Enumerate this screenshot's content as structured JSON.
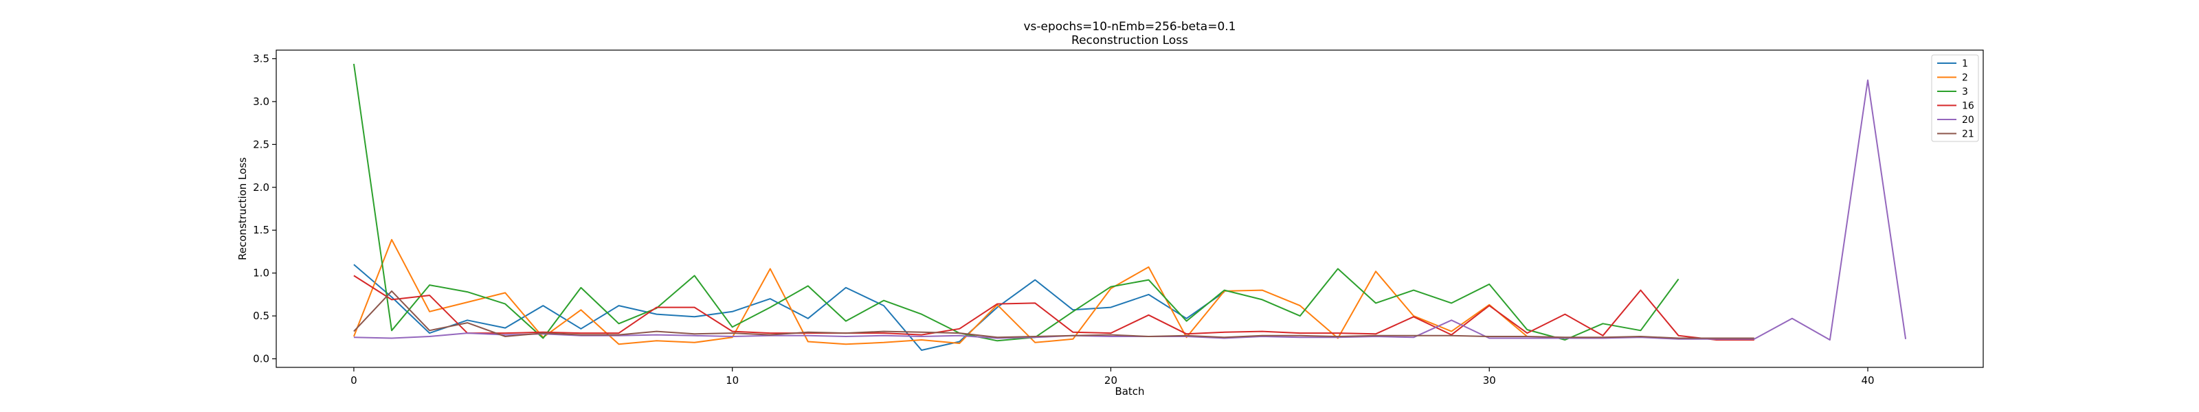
{
  "chart_data": {
    "type": "line",
    "title": "vs-epochs=10-nEmb=256-beta=0.1",
    "subtitle": "Reconstruction Loss",
    "xlabel": "Batch",
    "ylabel": "Reconstruction Loss",
    "xlim": [
      -2.05,
      43.05
    ],
    "ylim": [
      -0.1,
      3.6
    ],
    "x_ticks": [
      0,
      10,
      20,
      30,
      40
    ],
    "y_ticks": [
      0.0,
      0.5,
      1.0,
      1.5,
      2.0,
      2.5,
      3.0,
      3.5
    ],
    "grid": false,
    "legend_position": "upper right",
    "series": [
      {
        "name": "1",
        "color": "#1f77b4",
        "values": [
          1.1,
          0.72,
          0.3,
          0.45,
          0.36,
          0.62,
          0.35,
          0.62,
          0.52,
          0.49,
          0.55,
          0.7,
          0.47,
          0.83,
          0.62,
          0.1,
          0.2,
          0.6,
          0.92,
          0.57,
          0.6,
          0.75,
          0.47,
          0.78
        ]
      },
      {
        "name": "2",
        "color": "#ff7f0e",
        "values": [
          0.26,
          1.39,
          0.55,
          0.66,
          0.77,
          0.25,
          0.57,
          0.17,
          0.21,
          0.19,
          0.25,
          1.05,
          0.2,
          0.17,
          0.19,
          0.22,
          0.18,
          0.63,
          0.19,
          0.23,
          0.82,
          1.07,
          0.25,
          0.79,
          0.8,
          0.62,
          0.24,
          1.02,
          0.5,
          0.32,
          0.63,
          0.26
        ]
      },
      {
        "name": "3",
        "color": "#2ca02c",
        "values": [
          3.44,
          0.33,
          0.86,
          0.78,
          0.64,
          0.24,
          0.83,
          0.41,
          0.59,
          0.97,
          0.37,
          0.6,
          0.85,
          0.44,
          0.68,
          0.52,
          0.3,
          0.21,
          0.25,
          0.55,
          0.84,
          0.92,
          0.44,
          0.8,
          0.69,
          0.5,
          1.05,
          0.65,
          0.8,
          0.65,
          0.87,
          0.34,
          0.22,
          0.41,
          0.33,
          0.93
        ]
      },
      {
        "name": "16",
        "color": "#d62728",
        "values": [
          0.97,
          0.69,
          0.74,
          0.3,
          0.3,
          0.31,
          0.3,
          0.3,
          0.6,
          0.6,
          0.32,
          0.3,
          0.3,
          0.3,
          0.3,
          0.28,
          0.35,
          0.64,
          0.65,
          0.31,
          0.3,
          0.51,
          0.29,
          0.31,
          0.32,
          0.3,
          0.3,
          0.29,
          0.49,
          0.28,
          0.62,
          0.3,
          0.52,
          0.27,
          0.8,
          0.27,
          0.22,
          0.22
        ]
      },
      {
        "name": "20",
        "color": "#9467bd",
        "values": [
          0.25,
          0.24,
          0.26,
          0.3,
          0.28,
          0.29,
          0.27,
          0.27,
          0.28,
          0.27,
          0.26,
          0.27,
          0.27,
          0.26,
          0.27,
          0.26,
          0.27,
          0.24,
          0.25,
          0.27,
          0.26,
          0.26,
          0.26,
          0.24,
          0.26,
          0.25,
          0.25,
          0.26,
          0.25,
          0.45,
          0.24,
          0.24,
          0.24,
          0.24,
          0.25,
          0.23,
          0.23,
          0.23,
          0.47,
          0.22,
          3.25,
          0.23
        ]
      },
      {
        "name": "21",
        "color": "#8c564b",
        "values": [
          0.32,
          0.79,
          0.33,
          0.42,
          0.26,
          0.3,
          0.28,
          0.28,
          0.32,
          0.29,
          0.3,
          0.28,
          0.31,
          0.3,
          0.32,
          0.31,
          0.3,
          0.25,
          0.26,
          0.27,
          0.28,
          0.26,
          0.27,
          0.25,
          0.27,
          0.27,
          0.26,
          0.27,
          0.27,
          0.27,
          0.26,
          0.26,
          0.25,
          0.25,
          0.26,
          0.24,
          0.24,
          0.24
        ]
      }
    ]
  }
}
